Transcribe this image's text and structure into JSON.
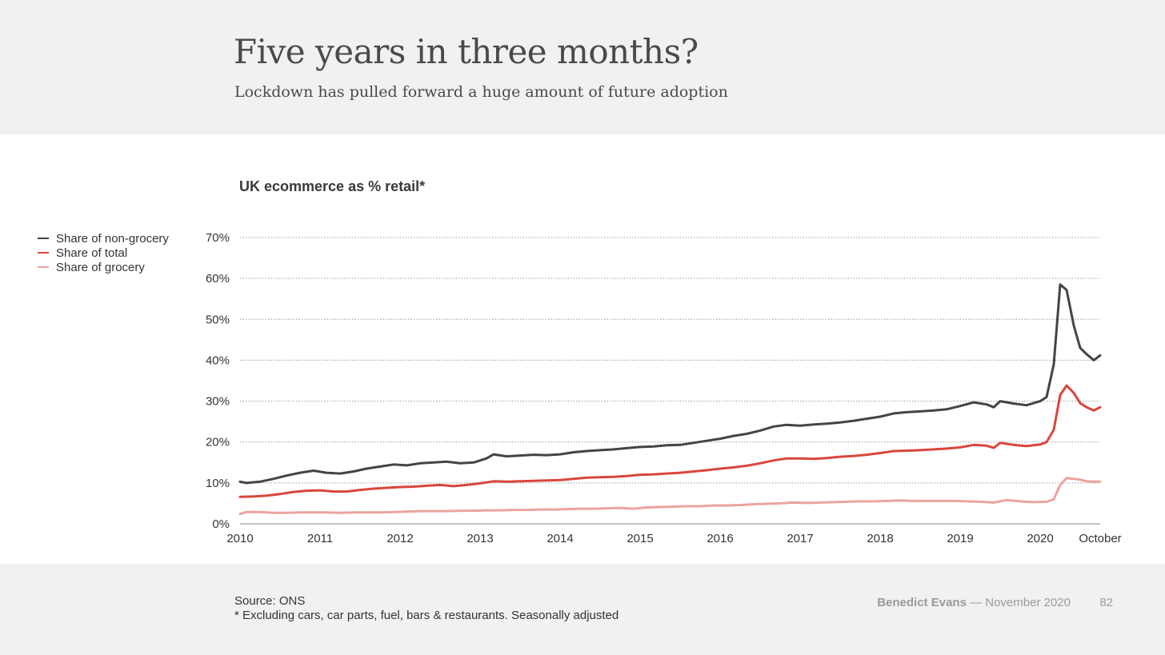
{
  "header": {
    "title": "Five years in three months?",
    "subtitle": "Lockdown has pulled forward a huge amount of future adoption"
  },
  "footer": {
    "source_line1": "Source: ONS",
    "source_line2": "* Excluding cars, car parts, fuel, bars & restaurants. Seasonally adjusted",
    "author": "Benedict Evans",
    "date": "— November 2020",
    "page_number": "82"
  },
  "colors": {
    "non_grocery": "#444444",
    "total": "#d9463c",
    "grocery": "#eba3a0",
    "grid": "#9a9a9a"
  },
  "chart_data": {
    "type": "line",
    "title": "UK ecommerce as % retail*",
    "xlabel": "",
    "ylabel": "",
    "x_ticks": [
      "2010",
      "2011",
      "2012",
      "2013",
      "2014",
      "2015",
      "2016",
      "2017",
      "2018",
      "2019",
      "2020",
      "October"
    ],
    "xlim": [
      2010,
      2020.75
    ],
    "y_ticks": [
      "0%",
      "10%",
      "20%",
      "30%",
      "40%",
      "50%",
      "60%",
      "70%"
    ],
    "ylim": [
      0,
      70
    ],
    "grid": true,
    "legend_position": "top-left",
    "series": [
      {
        "name": "Share of non-grocery",
        "color_key": "non_grocery",
        "points": [
          [
            2010.0,
            10.3
          ],
          [
            2010.08,
            10.0
          ],
          [
            2010.25,
            10.3
          ],
          [
            2010.42,
            11.0
          ],
          [
            2010.58,
            11.8
          ],
          [
            2010.75,
            12.5
          ],
          [
            2010.92,
            13.0
          ],
          [
            2011.08,
            12.5
          ],
          [
            2011.25,
            12.3
          ],
          [
            2011.42,
            12.8
          ],
          [
            2011.58,
            13.5
          ],
          [
            2011.75,
            14.0
          ],
          [
            2011.92,
            14.5
          ],
          [
            2012.08,
            14.3
          ],
          [
            2012.25,
            14.8
          ],
          [
            2012.42,
            15.0
          ],
          [
            2012.58,
            15.2
          ],
          [
            2012.75,
            14.8
          ],
          [
            2012.92,
            15.0
          ],
          [
            2013.08,
            16.0
          ],
          [
            2013.17,
            17.0
          ],
          [
            2013.33,
            16.5
          ],
          [
            2013.5,
            16.7
          ],
          [
            2013.67,
            16.9
          ],
          [
            2013.83,
            16.8
          ],
          [
            2014.0,
            17.0
          ],
          [
            2014.17,
            17.5
          ],
          [
            2014.33,
            17.8
          ],
          [
            2014.5,
            18.0
          ],
          [
            2014.67,
            18.2
          ],
          [
            2014.83,
            18.5
          ],
          [
            2015.0,
            18.8
          ],
          [
            2015.17,
            18.9
          ],
          [
            2015.33,
            19.2
          ],
          [
            2015.5,
            19.3
          ],
          [
            2015.67,
            19.8
          ],
          [
            2015.83,
            20.3
          ],
          [
            2016.0,
            20.8
          ],
          [
            2016.17,
            21.5
          ],
          [
            2016.33,
            22.0
          ],
          [
            2016.5,
            22.8
          ],
          [
            2016.67,
            23.8
          ],
          [
            2016.83,
            24.2
          ],
          [
            2017.0,
            24.0
          ],
          [
            2017.17,
            24.3
          ],
          [
            2017.33,
            24.5
          ],
          [
            2017.5,
            24.8
          ],
          [
            2017.67,
            25.2
          ],
          [
            2017.83,
            25.7
          ],
          [
            2018.0,
            26.2
          ],
          [
            2018.17,
            27.0
          ],
          [
            2018.33,
            27.3
          ],
          [
            2018.5,
            27.5
          ],
          [
            2018.67,
            27.7
          ],
          [
            2018.83,
            28.0
          ],
          [
            2019.0,
            28.8
          ],
          [
            2019.17,
            29.7
          ],
          [
            2019.33,
            29.2
          ],
          [
            2019.42,
            28.5
          ],
          [
            2019.5,
            30.0
          ],
          [
            2019.67,
            29.4
          ],
          [
            2019.83,
            29.0
          ],
          [
            2020.0,
            30.0
          ],
          [
            2020.08,
            31.0
          ],
          [
            2020.17,
            39.0
          ],
          [
            2020.25,
            58.5
          ],
          [
            2020.33,
            57.2
          ],
          [
            2020.42,
            48.5
          ],
          [
            2020.5,
            43.0
          ],
          [
            2020.58,
            41.5
          ],
          [
            2020.67,
            40.0
          ],
          [
            2020.75,
            41.2
          ]
        ]
      },
      {
        "name": "Share of total",
        "color_key": "total",
        "points": [
          [
            2010.0,
            6.6
          ],
          [
            2010.17,
            6.7
          ],
          [
            2010.33,
            6.9
          ],
          [
            2010.5,
            7.3
          ],
          [
            2010.67,
            7.8
          ],
          [
            2010.83,
            8.1
          ],
          [
            2011.0,
            8.2
          ],
          [
            2011.17,
            7.9
          ],
          [
            2011.33,
            7.9
          ],
          [
            2011.5,
            8.3
          ],
          [
            2011.67,
            8.6
          ],
          [
            2011.83,
            8.8
          ],
          [
            2012.0,
            9.0
          ],
          [
            2012.17,
            9.1
          ],
          [
            2012.33,
            9.3
          ],
          [
            2012.5,
            9.5
          ],
          [
            2012.67,
            9.2
          ],
          [
            2012.83,
            9.5
          ],
          [
            2013.0,
            9.9
          ],
          [
            2013.17,
            10.4
          ],
          [
            2013.33,
            10.3
          ],
          [
            2013.5,
            10.4
          ],
          [
            2013.67,
            10.5
          ],
          [
            2013.83,
            10.6
          ],
          [
            2014.0,
            10.7
          ],
          [
            2014.17,
            11.0
          ],
          [
            2014.33,
            11.3
          ],
          [
            2014.5,
            11.4
          ],
          [
            2014.67,
            11.5
          ],
          [
            2014.83,
            11.7
          ],
          [
            2015.0,
            12.0
          ],
          [
            2015.17,
            12.1
          ],
          [
            2015.33,
            12.3
          ],
          [
            2015.5,
            12.5
          ],
          [
            2015.67,
            12.8
          ],
          [
            2015.83,
            13.1
          ],
          [
            2016.0,
            13.5
          ],
          [
            2016.17,
            13.8
          ],
          [
            2016.33,
            14.2
          ],
          [
            2016.5,
            14.8
          ],
          [
            2016.67,
            15.5
          ],
          [
            2016.83,
            16.0
          ],
          [
            2017.0,
            16.0
          ],
          [
            2017.17,
            15.9
          ],
          [
            2017.33,
            16.1
          ],
          [
            2017.5,
            16.4
          ],
          [
            2017.67,
            16.6
          ],
          [
            2017.83,
            16.9
          ],
          [
            2018.0,
            17.3
          ],
          [
            2018.17,
            17.8
          ],
          [
            2018.33,
            17.9
          ],
          [
            2018.5,
            18.0
          ],
          [
            2018.67,
            18.2
          ],
          [
            2018.83,
            18.4
          ],
          [
            2019.0,
            18.7
          ],
          [
            2019.17,
            19.3
          ],
          [
            2019.33,
            19.1
          ],
          [
            2019.42,
            18.6
          ],
          [
            2019.5,
            19.8
          ],
          [
            2019.67,
            19.3
          ],
          [
            2019.83,
            19.0
          ],
          [
            2020.0,
            19.4
          ],
          [
            2020.08,
            20.0
          ],
          [
            2020.17,
            23.0
          ],
          [
            2020.25,
            31.5
          ],
          [
            2020.33,
            33.8
          ],
          [
            2020.42,
            32.0
          ],
          [
            2020.5,
            29.5
          ],
          [
            2020.58,
            28.5
          ],
          [
            2020.67,
            27.7
          ],
          [
            2020.75,
            28.5
          ]
        ]
      },
      {
        "name": "Share of grocery",
        "color_key": "grocery",
        "points": [
          [
            2010.0,
            2.4
          ],
          [
            2010.08,
            2.9
          ],
          [
            2010.25,
            2.9
          ],
          [
            2010.42,
            2.7
          ],
          [
            2010.58,
            2.7
          ],
          [
            2010.75,
            2.8
          ],
          [
            2010.92,
            2.8
          ],
          [
            2011.08,
            2.8
          ],
          [
            2011.25,
            2.7
          ],
          [
            2011.42,
            2.8
          ],
          [
            2011.58,
            2.8
          ],
          [
            2011.75,
            2.8
          ],
          [
            2011.92,
            2.9
          ],
          [
            2012.08,
            3.0
          ],
          [
            2012.25,
            3.1
          ],
          [
            2012.42,
            3.1
          ],
          [
            2012.58,
            3.1
          ],
          [
            2012.75,
            3.2
          ],
          [
            2012.92,
            3.2
          ],
          [
            2013.08,
            3.3
          ],
          [
            2013.25,
            3.3
          ],
          [
            2013.42,
            3.4
          ],
          [
            2013.58,
            3.4
          ],
          [
            2013.75,
            3.5
          ],
          [
            2013.92,
            3.5
          ],
          [
            2014.08,
            3.6
          ],
          [
            2014.25,
            3.7
          ],
          [
            2014.42,
            3.7
          ],
          [
            2014.58,
            3.8
          ],
          [
            2014.75,
            3.9
          ],
          [
            2014.92,
            3.7
          ],
          [
            2015.08,
            4.0
          ],
          [
            2015.25,
            4.1
          ],
          [
            2015.42,
            4.2
          ],
          [
            2015.58,
            4.3
          ],
          [
            2015.75,
            4.3
          ],
          [
            2015.92,
            4.5
          ],
          [
            2016.08,
            4.5
          ],
          [
            2016.25,
            4.6
          ],
          [
            2016.42,
            4.8
          ],
          [
            2016.58,
            4.9
          ],
          [
            2016.75,
            5.0
          ],
          [
            2016.92,
            5.2
          ],
          [
            2017.08,
            5.1
          ],
          [
            2017.25,
            5.2
          ],
          [
            2017.42,
            5.3
          ],
          [
            2017.58,
            5.4
          ],
          [
            2017.75,
            5.5
          ],
          [
            2017.92,
            5.5
          ],
          [
            2018.08,
            5.6
          ],
          [
            2018.25,
            5.7
          ],
          [
            2018.42,
            5.6
          ],
          [
            2018.58,
            5.6
          ],
          [
            2018.75,
            5.6
          ],
          [
            2018.92,
            5.6
          ],
          [
            2019.08,
            5.5
          ],
          [
            2019.25,
            5.4
          ],
          [
            2019.42,
            5.2
          ],
          [
            2019.58,
            5.8
          ],
          [
            2019.75,
            5.5
          ],
          [
            2019.92,
            5.3
          ],
          [
            2020.08,
            5.4
          ],
          [
            2020.17,
            6.0
          ],
          [
            2020.25,
            9.5
          ],
          [
            2020.33,
            11.2
          ],
          [
            2020.42,
            11.0
          ],
          [
            2020.5,
            10.8
          ],
          [
            2020.58,
            10.4
          ],
          [
            2020.67,
            10.3
          ],
          [
            2020.75,
            10.3
          ]
        ]
      }
    ]
  }
}
